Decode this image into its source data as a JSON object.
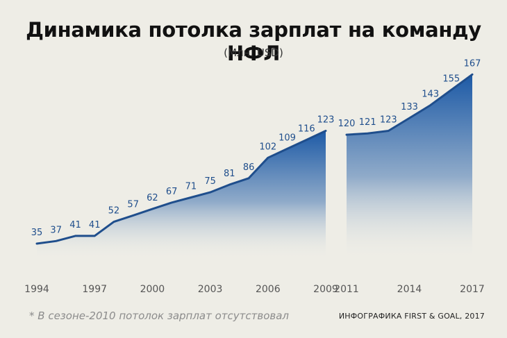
{
  "title": "Динамика потолка зарплат на команду НФЛ",
  "subtitle": "(Млн. USD)",
  "footnote": "* В сезоне-2010 потолок зарплат отсутствовал",
  "credit": "ИНФОГРАФИКА FIRST & GOAL, 2017",
  "colors": {
    "line": "#1f4e8c",
    "label": "#1f4e8c",
    "area_top": "#1d5aa6",
    "area_bottom": "#eeede6",
    "tick": "#555555"
  },
  "chart_data": {
    "type": "area",
    "segments": [
      {
        "x": [
          1994,
          1995,
          1996,
          1997,
          1998,
          1999,
          2000,
          2001,
          2002,
          2003,
          2004,
          2005,
          2006,
          2007,
          2008,
          2009
        ],
        "values": [
          35,
          37,
          41,
          41,
          52,
          57,
          62,
          67,
          71,
          75,
          81,
          86,
          102,
          109,
          116,
          123
        ]
      },
      {
        "x": [
          2011,
          2012,
          2013,
          2014,
          2015,
          2016,
          2017
        ],
        "values": [
          120,
          121,
          123,
          133,
          143,
          155,
          167
        ]
      }
    ],
    "x_ticks": [
      {
        "value": 1994,
        "label": "1994"
      },
      {
        "value": 1997,
        "label": "1997"
      },
      {
        "value": 2000,
        "label": "2000"
      },
      {
        "value": 2003,
        "label": "2003"
      },
      {
        "value": 2006,
        "label": "2006"
      },
      {
        "value": 2009,
        "label": "2009"
      },
      {
        "value": 2011,
        "label": "2011"
      },
      {
        "value": 2014,
        "label": "2014"
      },
      {
        "value": 2017,
        "label": "2017"
      }
    ],
    "gap_year": 2010,
    "grid": false,
    "legend": "none"
  }
}
